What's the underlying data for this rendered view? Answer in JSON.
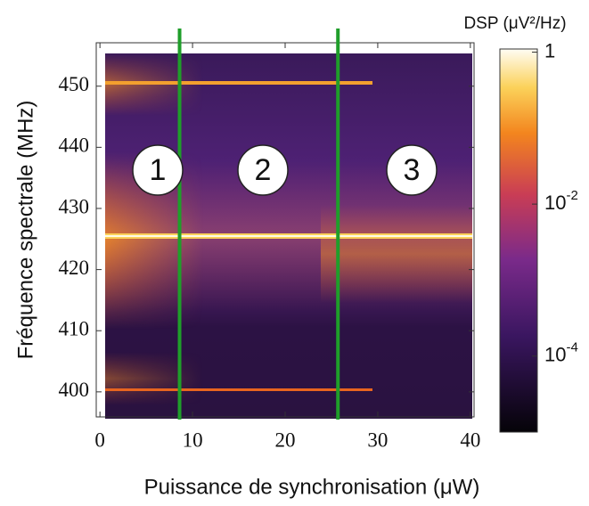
{
  "chart_data": {
    "type": "heatmap",
    "xlabel": "Puissance de synchronisation (μW)",
    "ylabel": "Fréquence spectrale (MHz)",
    "xlim": [
      -0.4,
      40.4
    ],
    "xticks": [
      0,
      10,
      20,
      30,
      40
    ],
    "ylim": [
      395.9,
      457.1
    ],
    "yticks": [
      400,
      410,
      420,
      430,
      440,
      450
    ],
    "colorbar": {
      "title": "DSP (μV²/Hz)",
      "log": true,
      "lim": [
        1e-05,
        1.1
      ],
      "ticks": [
        1,
        {
          "value": 0.01,
          "label": "10-2"
        },
        {
          "value": 0.0001,
          "label": "10-4"
        }
      ]
    },
    "vlines": [
      {
        "x": 8.6,
        "color": "#1f9e2a"
      },
      {
        "x": 25.7,
        "color": "#1f9e2a"
      }
    ],
    "annotations": [
      "1",
      "2",
      "3"
    ]
  }
}
